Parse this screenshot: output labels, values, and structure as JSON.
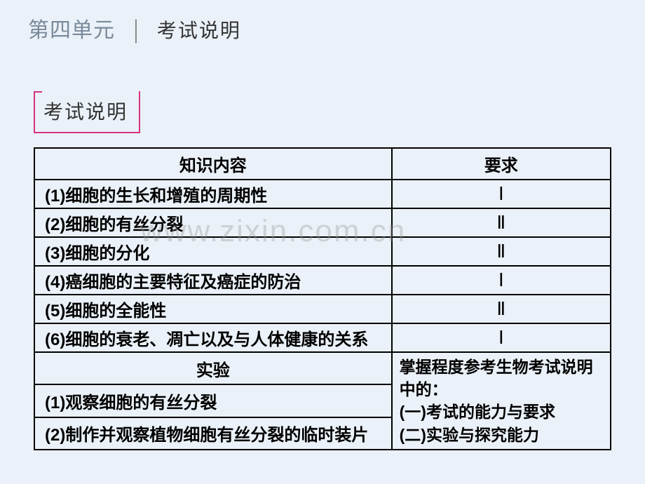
{
  "header": {
    "unit": "第四单元",
    "divider": "│",
    "subtitle": "考试说明"
  },
  "box_label": "考试说明",
  "table": {
    "headers": {
      "content": "知识内容",
      "requirement": "要求"
    },
    "rows": [
      {
        "content": "(1)细胞的生长和增殖的周期性",
        "req": "Ⅰ"
      },
      {
        "content": "(2)细胞的有丝分裂",
        "req": "Ⅱ"
      },
      {
        "content": "(3)细胞的分化",
        "req": "Ⅱ"
      },
      {
        "content": "(4)癌细胞的主要特征及癌症的防治",
        "req": "Ⅰ"
      },
      {
        "content": "(5)细胞的全能性",
        "req": "Ⅱ"
      },
      {
        "content": "(6)细胞的衰老、凋亡以及与人体健康的关系",
        "req": "Ⅰ"
      }
    ],
    "experiment_header": "实验",
    "experiment_rows": [
      "(1)观察细胞的有丝分裂",
      "(2)制作并观察植物细胞有丝分裂的临时装片"
    ],
    "note_lines": [
      "掌握程度参考生物考试说明中的：",
      "(一)考试的能力与要求",
      "(二)实验与探究能力"
    ]
  },
  "watermark": "www.zixin.com.cn",
  "styling": {
    "page_bg": "#eaf1f8",
    "border_color": "#000000",
    "box_border_color": "#d63384",
    "header_unit_color": "#7a8a9a",
    "text_color": "#000000",
    "watermark_color": "rgba(150,150,150,0.35)",
    "font_sizes": {
      "header_unit": 30,
      "header_subtitle": 28,
      "box_label": 28,
      "table_cell": 24,
      "watermark": 44
    }
  }
}
